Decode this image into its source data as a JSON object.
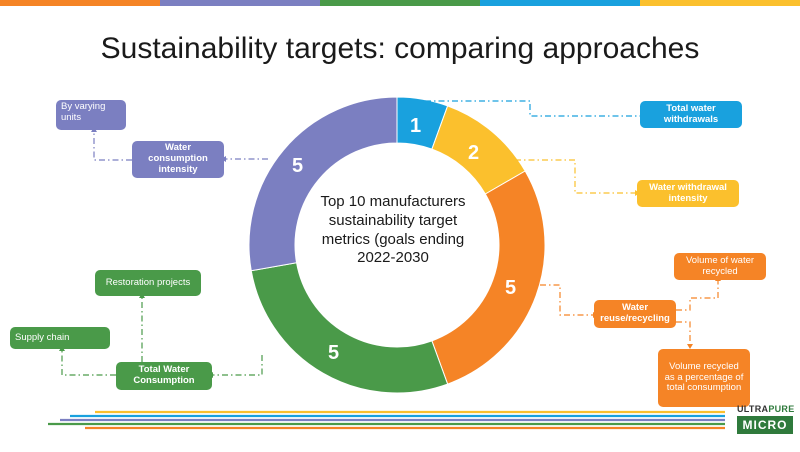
{
  "title": "Sustainability targets: comparing approaches",
  "colors": {
    "blue": "#19a1de",
    "yellow": "#fbc02d",
    "orange": "#f58426",
    "green": "#4a9a49",
    "purple": "#7b7fc1"
  },
  "center_text": "Top 10 manufacturers sustainability target metrics (goals ending 2022-2030",
  "segments": [
    {
      "value": 1,
      "color": "#19a1de"
    },
    {
      "value": 2,
      "color": "#fbc02d"
    },
    {
      "value": 5,
      "color": "#f58426"
    },
    {
      "value": 5,
      "color": "#4a9a49"
    },
    {
      "value": 5,
      "color": "#7b7fc1"
    }
  ],
  "labels": {
    "total_water_withdrawals": "Total water withdrawals",
    "water_withdrawal_intensity": "Water withdrawal intensity",
    "water_reuse_recycling": "Water reuse/recycling",
    "volume_of_water_recycled": "Volume of water recycled",
    "volume_recycled_percentage": "Volume recycled as a percentage of total consumption",
    "total_water_consumption": "Total Water Consumption",
    "restoration_projects": "Restoration projects",
    "supply_chain": "Supply chain",
    "water_consumption_intensity": "Water consumption intensity",
    "by_varying_units": "By varying units"
  },
  "logo": {
    "line1_a": "ULTRA",
    "line1_b": "PURE",
    "line2": "MICRO"
  }
}
